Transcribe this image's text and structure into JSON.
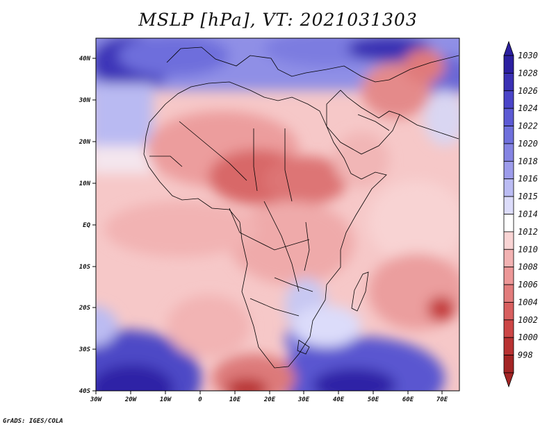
{
  "title": "MSLP [hPa], VT: 2021031303",
  "credit": "GrADS: IGES/COLA",
  "lat_ticks": [
    "40N",
    "30N",
    "20N",
    "10N",
    "EQ",
    "10S",
    "20S",
    "30S",
    "40S"
  ],
  "lon_ticks": [
    "30W",
    "20W",
    "10W",
    "0",
    "10E",
    "20E",
    "30E",
    "40E",
    "50E",
    "60E",
    "70E"
  ],
  "colorbar": {
    "levels": [
      "1030",
      "1028",
      "1026",
      "1024",
      "1022",
      "1020",
      "1018",
      "1016",
      "1015",
      "1014",
      "1012",
      "1010",
      "1008",
      "1006",
      "1004",
      "1002",
      "1000",
      "998"
    ],
    "colors": [
      "#2b1fa0",
      "#3a30b4",
      "#4a44c8",
      "#5c5ad4",
      "#6f70dc",
      "#8584e3",
      "#9d9ceb",
      "#bbbcf3",
      "#dcdcfa",
      "#ffffff",
      "#f9d4d4",
      "#f2b2b2",
      "#ec9797",
      "#e27c7c",
      "#d85f5f",
      "#cc4646",
      "#b83232",
      "#a32424"
    ]
  },
  "map_colors": {
    "land_outline": "#000000",
    "low_deep": "#b32a2a",
    "low": "#e48383",
    "neutral": "#ffffff",
    "high": "#8e8ee8",
    "high_deep": "#2c22a6"
  }
}
